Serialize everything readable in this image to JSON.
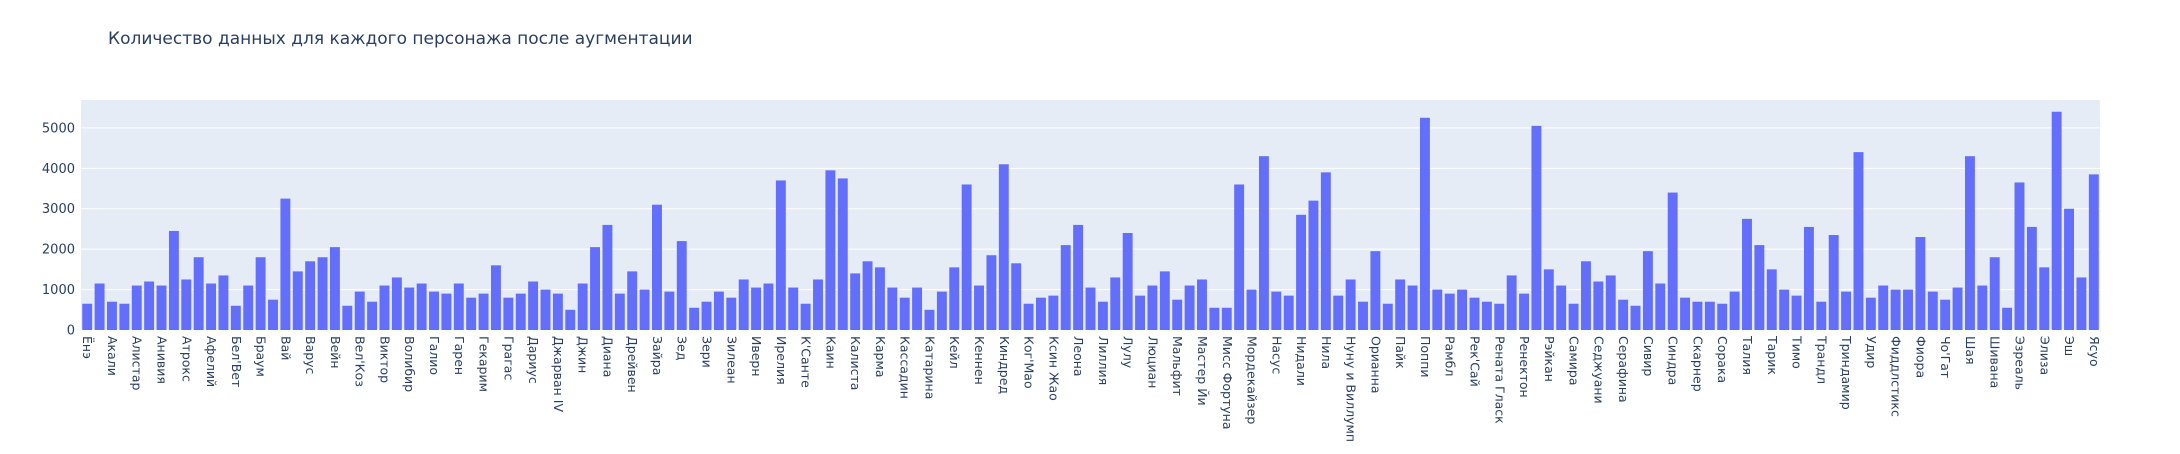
{
  "chart_data": {
    "type": "bar",
    "title": "Количество данных для каждого персонажа после аугментации",
    "color": "#636efa",
    "ylim": [
      0,
      5690
    ],
    "yticks": [
      0,
      1000,
      2000,
      3000,
      4000,
      5000
    ],
    "grid": true,
    "categories": [
      "Ёнэ",
      null,
      "Акали",
      null,
      "Алистар",
      null,
      "Анивия",
      null,
      "Атрокс",
      null,
      "Афелий",
      null,
      "Бел'Вет",
      null,
      "Браум",
      null,
      "Вай",
      null,
      "Варус",
      null,
      "Вейн",
      null,
      "Вел'Коз",
      null,
      "Виктор",
      null,
      "Волибир",
      null,
      "Галио",
      null,
      "Гарен",
      null,
      "Гекарим",
      null,
      "Грагас",
      null,
      "Дариус",
      null,
      "Джарван IV",
      null,
      "Джин",
      null,
      "Диана",
      null,
      "Дрейвен",
      null,
      "Зайра",
      null,
      "Зед",
      null,
      "Зери",
      null,
      "Зилеан",
      null,
      "Иверн",
      null,
      "Ирелия",
      null,
      "К'Санте",
      null,
      "Каин",
      null,
      "Калиста",
      null,
      "Карма",
      null,
      "Кассадин",
      null,
      "Катарина",
      null,
      "Кейл",
      null,
      "Кеннен",
      null,
      "Киндред",
      null,
      "Ког'Мао",
      null,
      "Ксин Жао",
      null,
      "Леона",
      null,
      "Лиллия",
      null,
      "Лулу",
      null,
      "Люциан",
      null,
      "Мальфит",
      null,
      "Мастер Йи",
      null,
      "Мисс Фортуна",
      null,
      "Мордекайзер",
      null,
      "Насус",
      null,
      "Нидали",
      null,
      "Нила",
      null,
      "Нуну и Виллумп",
      null,
      "Орианна",
      null,
      "Пайк",
      null,
      "Поппи",
      null,
      "Рамбл",
      null,
      "Рек'Сай",
      null,
      "Рената Гласк",
      null,
      "Ренектон",
      null,
      "Рэйкан",
      null,
      "Самира",
      null,
      "Седжуани",
      null,
      "Серафина",
      null,
      "Сивир",
      null,
      "Синдра",
      null,
      "Скарнер",
      null,
      "Сорака",
      null,
      "Талия",
      null,
      "Тарик",
      null,
      "Тимо",
      null,
      "Трандл",
      null,
      "Триндамир",
      null,
      "Удир",
      null,
      "Фиддлстикс",
      null,
      "Фиора",
      null,
      "Чо'Гат",
      null,
      "Шая",
      null,
      "Шивана",
      null,
      "Эзреаль",
      null,
      "Элиза",
      null,
      "Эш",
      null,
      "Ясуо"
    ],
    "values": [
      650,
      1150,
      700,
      650,
      1100,
      1200,
      1100,
      2450,
      1250,
      1800,
      1150,
      1350,
      600,
      1100,
      1800,
      750,
      3250,
      1450,
      1700,
      1800,
      2050,
      600,
      950,
      700,
      1100,
      1300,
      1050,
      1150,
      950,
      900,
      1150,
      800,
      900,
      1600,
      800,
      900,
      1200,
      1000,
      900,
      500,
      1150,
      2050,
      2600,
      900,
      1450,
      1000,
      3100,
      950,
      2200,
      550,
      700,
      950,
      800,
      1250,
      1050,
      1150,
      3700,
      1050,
      650,
      1250,
      3950,
      3750,
      1400,
      1700,
      1550,
      1050,
      800,
      1050,
      500,
      950,
      1550,
      3600,
      1100,
      1850,
      4100,
      1650,
      650,
      800,
      850,
      2100,
      2600,
      1050,
      700,
      1300,
      2400,
      850,
      1100,
      1450,
      750,
      1100,
      1250,
      550,
      550,
      3600,
      1000,
      4300,
      950,
      850,
      2850,
      3200,
      3900,
      850,
      1250,
      700,
      1950,
      650,
      1250,
      1100,
      5250,
      1000,
      900,
      1000,
      800,
      700,
      650,
      1350,
      900,
      5050,
      1500,
      1100,
      650,
      1700,
      1200,
      1350,
      750,
      600,
      1950,
      1150,
      3400,
      800,
      700,
      700,
      650,
      950,
      2750,
      2100,
      1500,
      1000,
      850,
      2550,
      700,
      2350,
      950,
      4400,
      800,
      1100,
      1000,
      1000,
      2300,
      950,
      750,
      1050,
      4300,
      1100,
      1800,
      550,
      3650,
      2550,
      1550,
      5400,
      3000,
      1300,
      3850
    ]
  }
}
